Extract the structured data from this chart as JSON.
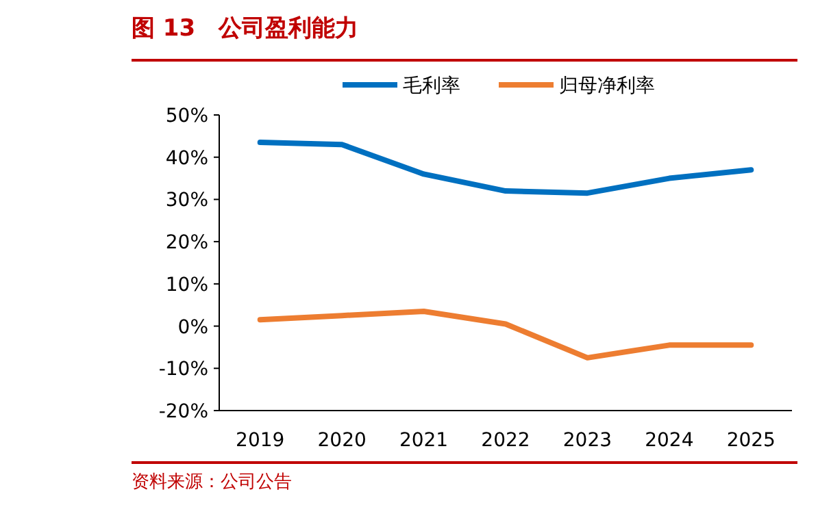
{
  "chart_data": {
    "type": "line",
    "title": "图 13　公司盈利能力",
    "annotations": [
      "资料来源：公司公告"
    ],
    "categories": [
      "2019",
      "2020",
      "2021",
      "2022",
      "2023",
      "2024",
      "2025"
    ],
    "series": [
      {
        "name": "毛利率",
        "color": "#0070c0",
        "values": [
          43.5,
          43,
          36,
          32,
          31.5,
          35,
          37
        ]
      },
      {
        "name": "归母净利率",
        "color": "#ed7d31",
        "values": [
          1.5,
          2.5,
          3.5,
          0.5,
          -7.5,
          -4.5,
          -4.5
        ]
      }
    ],
    "ylim": [
      -20,
      50
    ],
    "yticks": [
      {
        "value": -20,
        "label": "-20%"
      },
      {
        "value": -10,
        "label": "-10%"
      },
      {
        "value": 0,
        "label": "0%"
      },
      {
        "value": 10,
        "label": "10%"
      },
      {
        "value": 20,
        "label": "20%"
      },
      {
        "value": 30,
        "label": "30%"
      },
      {
        "value": 40,
        "label": "40%"
      },
      {
        "value": 50,
        "label": "50%"
      }
    ],
    "legend": "top",
    "grid": false,
    "marker": "none",
    "line_style": "solid"
  }
}
